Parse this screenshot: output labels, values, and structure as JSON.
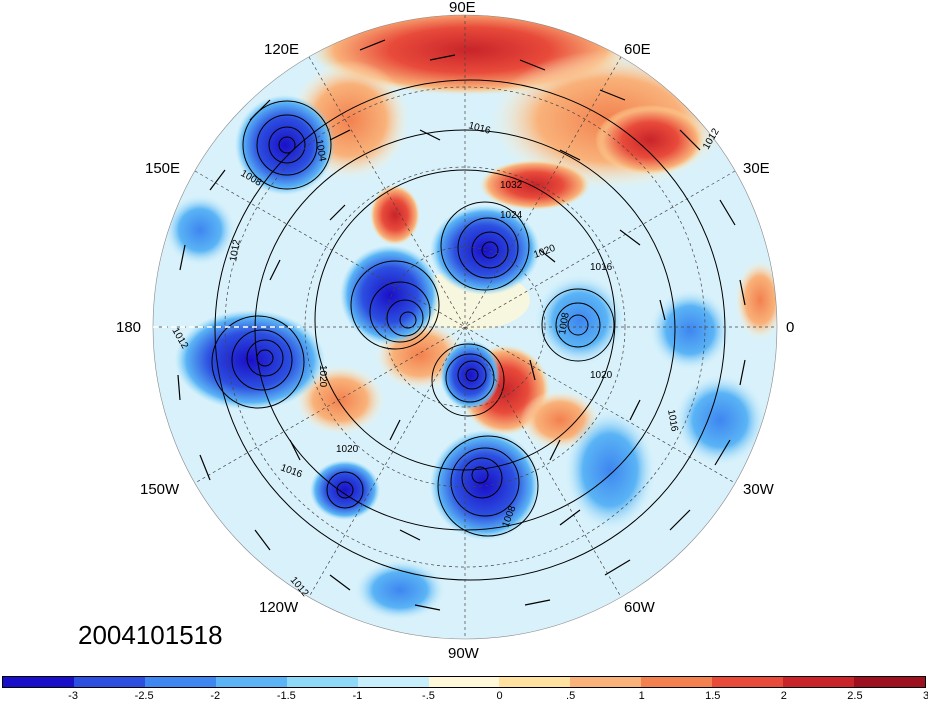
{
  "map": {
    "projection": "polar-stereographic-north",
    "longitude_labels": {
      "top": "90E",
      "upper_right_1": "60E",
      "upper_right_2": "30E",
      "right": "0",
      "lower_right_1": "30W",
      "lower_right_2": "60W",
      "bottom": "90W",
      "lower_left_1": "120W",
      "lower_left_2": "150W",
      "left": "180",
      "upper_left_1": "150E",
      "upper_left_2": "120E"
    },
    "contour_labels": [
      "1004",
      "1008",
      "1012",
      "1016",
      "1020",
      "1024",
      "1032",
      "1016",
      "1012",
      "1020",
      "1008",
      "1016",
      "1020",
      "1012",
      "1008",
      "1016",
      "1012",
      "1020"
    ],
    "date": "2004101518"
  },
  "colorbar": {
    "colors": [
      "#1a0fc8",
      "#2c4fe0",
      "#3e86f0",
      "#5ab4f5",
      "#8fd9f8",
      "#c6eefb",
      "#fff8d8",
      "#ffe2a0",
      "#f9b27a",
      "#f2814f",
      "#e84a3a",
      "#c8242a",
      "#9c1020"
    ],
    "tick_labels": [
      "-3",
      "-2.5",
      "-2",
      "-1.5",
      "-1",
      "-.5",
      "0",
      ".5",
      "1",
      "1.5",
      "2",
      "2.5",
      "3"
    ]
  }
}
